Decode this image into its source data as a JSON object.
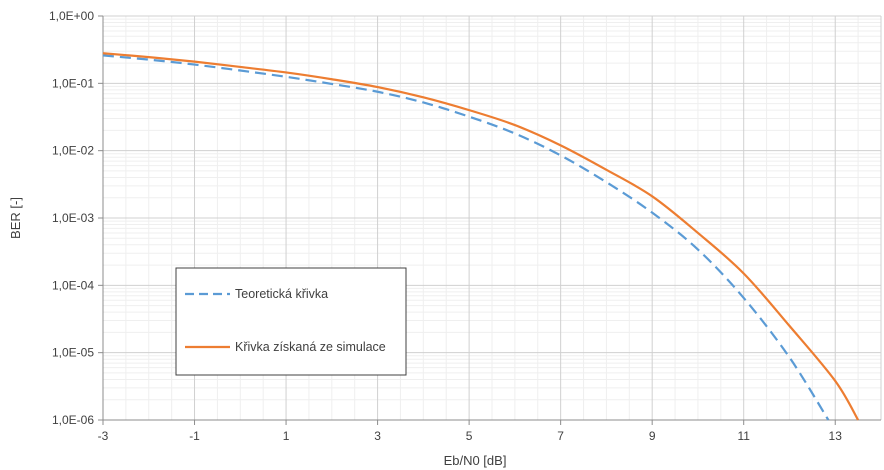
{
  "chart_data": {
    "type": "line",
    "title": "",
    "xlabel": "Eb/N0 [dB]",
    "ylabel": "BER [-]",
    "xlim": [
      -3,
      14
    ],
    "ylim": [
      1e-06,
      1
    ],
    "y_scale": "log",
    "grid": true,
    "x_ticks": [
      -3,
      -1,
      1,
      3,
      5,
      7,
      9,
      11,
      13
    ],
    "x_tick_labels": [
      "-3",
      "-1",
      "1",
      "3",
      "5",
      "7",
      "9",
      "11",
      "13"
    ],
    "y_ticks": [
      1e-06,
      1e-05,
      0.0001,
      0.001,
      0.01,
      0.1,
      1
    ],
    "y_tick_labels": [
      "1,0E-06",
      "1,0E-05",
      "1,0E-04",
      "1,0E-03",
      "1,0E-02",
      "1,0E-01",
      "1,0E+00"
    ],
    "legend_position": "bottom-left",
    "series": [
      {
        "name": "Teoretická křivka",
        "color": "#5B9BD5",
        "style": "dashed",
        "x": [
          -3,
          -2,
          -1,
          0,
          1,
          2,
          3,
          4,
          5,
          6,
          7,
          8,
          9,
          10,
          11,
          12,
          12.85
        ],
        "y": [
          0.26,
          0.225,
          0.19,
          0.155,
          0.125,
          0.098,
          0.075,
          0.052,
          0.032,
          0.018,
          0.0085,
          0.0034,
          0.0012,
          0.00034,
          6.5e-05,
          8.5e-06,
          1e-06
        ]
      },
      {
        "name": "Křivka získaná ze simulace",
        "color": "#ED7D31",
        "style": "solid",
        "x": [
          -3,
          -2,
          -1,
          0,
          1,
          2,
          3,
          4,
          5,
          6,
          7,
          8,
          9,
          10,
          11,
          12,
          13,
          13.5
        ],
        "y": [
          0.28,
          0.245,
          0.21,
          0.175,
          0.145,
          0.115,
          0.088,
          0.062,
          0.04,
          0.024,
          0.012,
          0.0052,
          0.0021,
          0.0006,
          0.00015,
          2.5e-05,
          3.8e-06,
          1e-06
        ]
      }
    ]
  }
}
